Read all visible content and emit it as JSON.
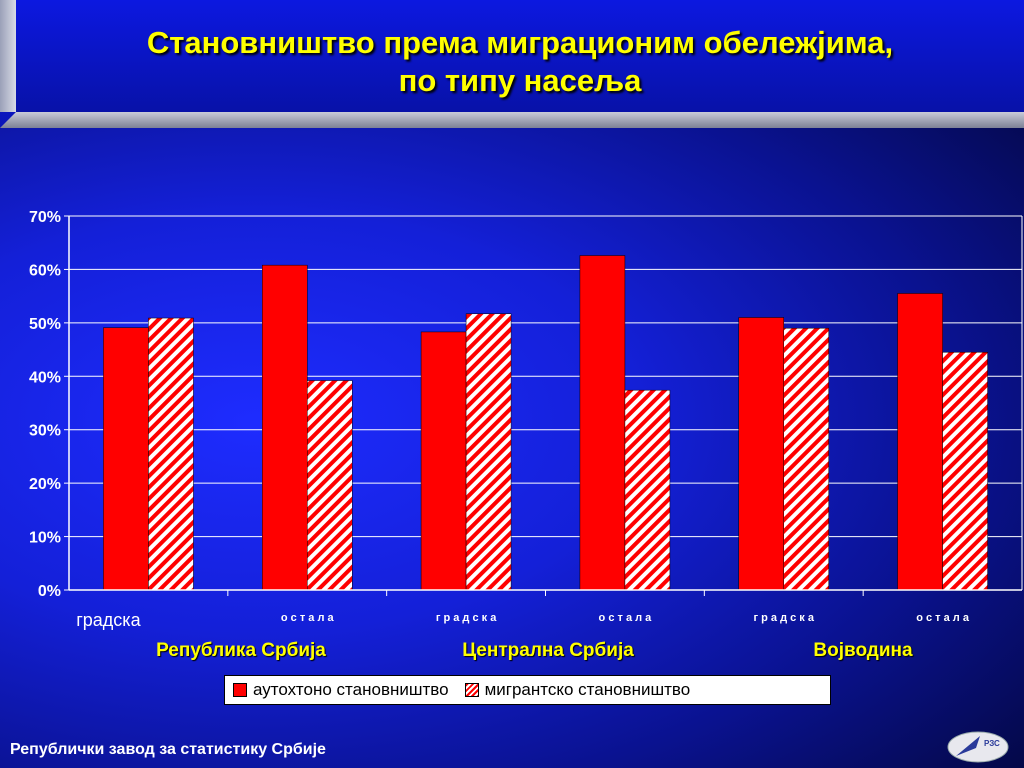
{
  "title_line1": "Становништво према миграционим обележјима,",
  "title_line2": "по типу насеља",
  "footer": "Републички завод за статистику Србије",
  "logo_text": "РЗС",
  "colors": {
    "autochthonous": "#ff0000",
    "migrant_stripe": "#ff0000",
    "migrant_bg": "#ffffff",
    "axis": "#ffffff",
    "region_label": "#ffff00"
  },
  "regions": [
    "Република Србија",
    "Централна Србија",
    "Војводина"
  ],
  "chart_data": {
    "type": "bar",
    "title": "Становништво према миграционим обележјима, по типу насеља",
    "categories": [
      "градска",
      "о с т а л а",
      "г р а д с к а",
      "о с т а л а",
      "г р а д с к а",
      "о с т а л а"
    ],
    "series": [
      {
        "name": "аутохтоно становништво",
        "values": [
          49.1,
          60.8,
          48.3,
          62.6,
          51.0,
          55.5
        ],
        "pattern": "solid"
      },
      {
        "name": "мигрантско становништво",
        "values": [
          50.9,
          39.2,
          51.7,
          37.4,
          49.0,
          44.5
        ],
        "pattern": "hatched"
      }
    ],
    "ylim": [
      0,
      70
    ],
    "yticks": [
      "0%",
      "10%",
      "20%",
      "30%",
      "40%",
      "50%",
      "60%",
      "70%"
    ],
    "grid": true,
    "legend": "bottom"
  }
}
